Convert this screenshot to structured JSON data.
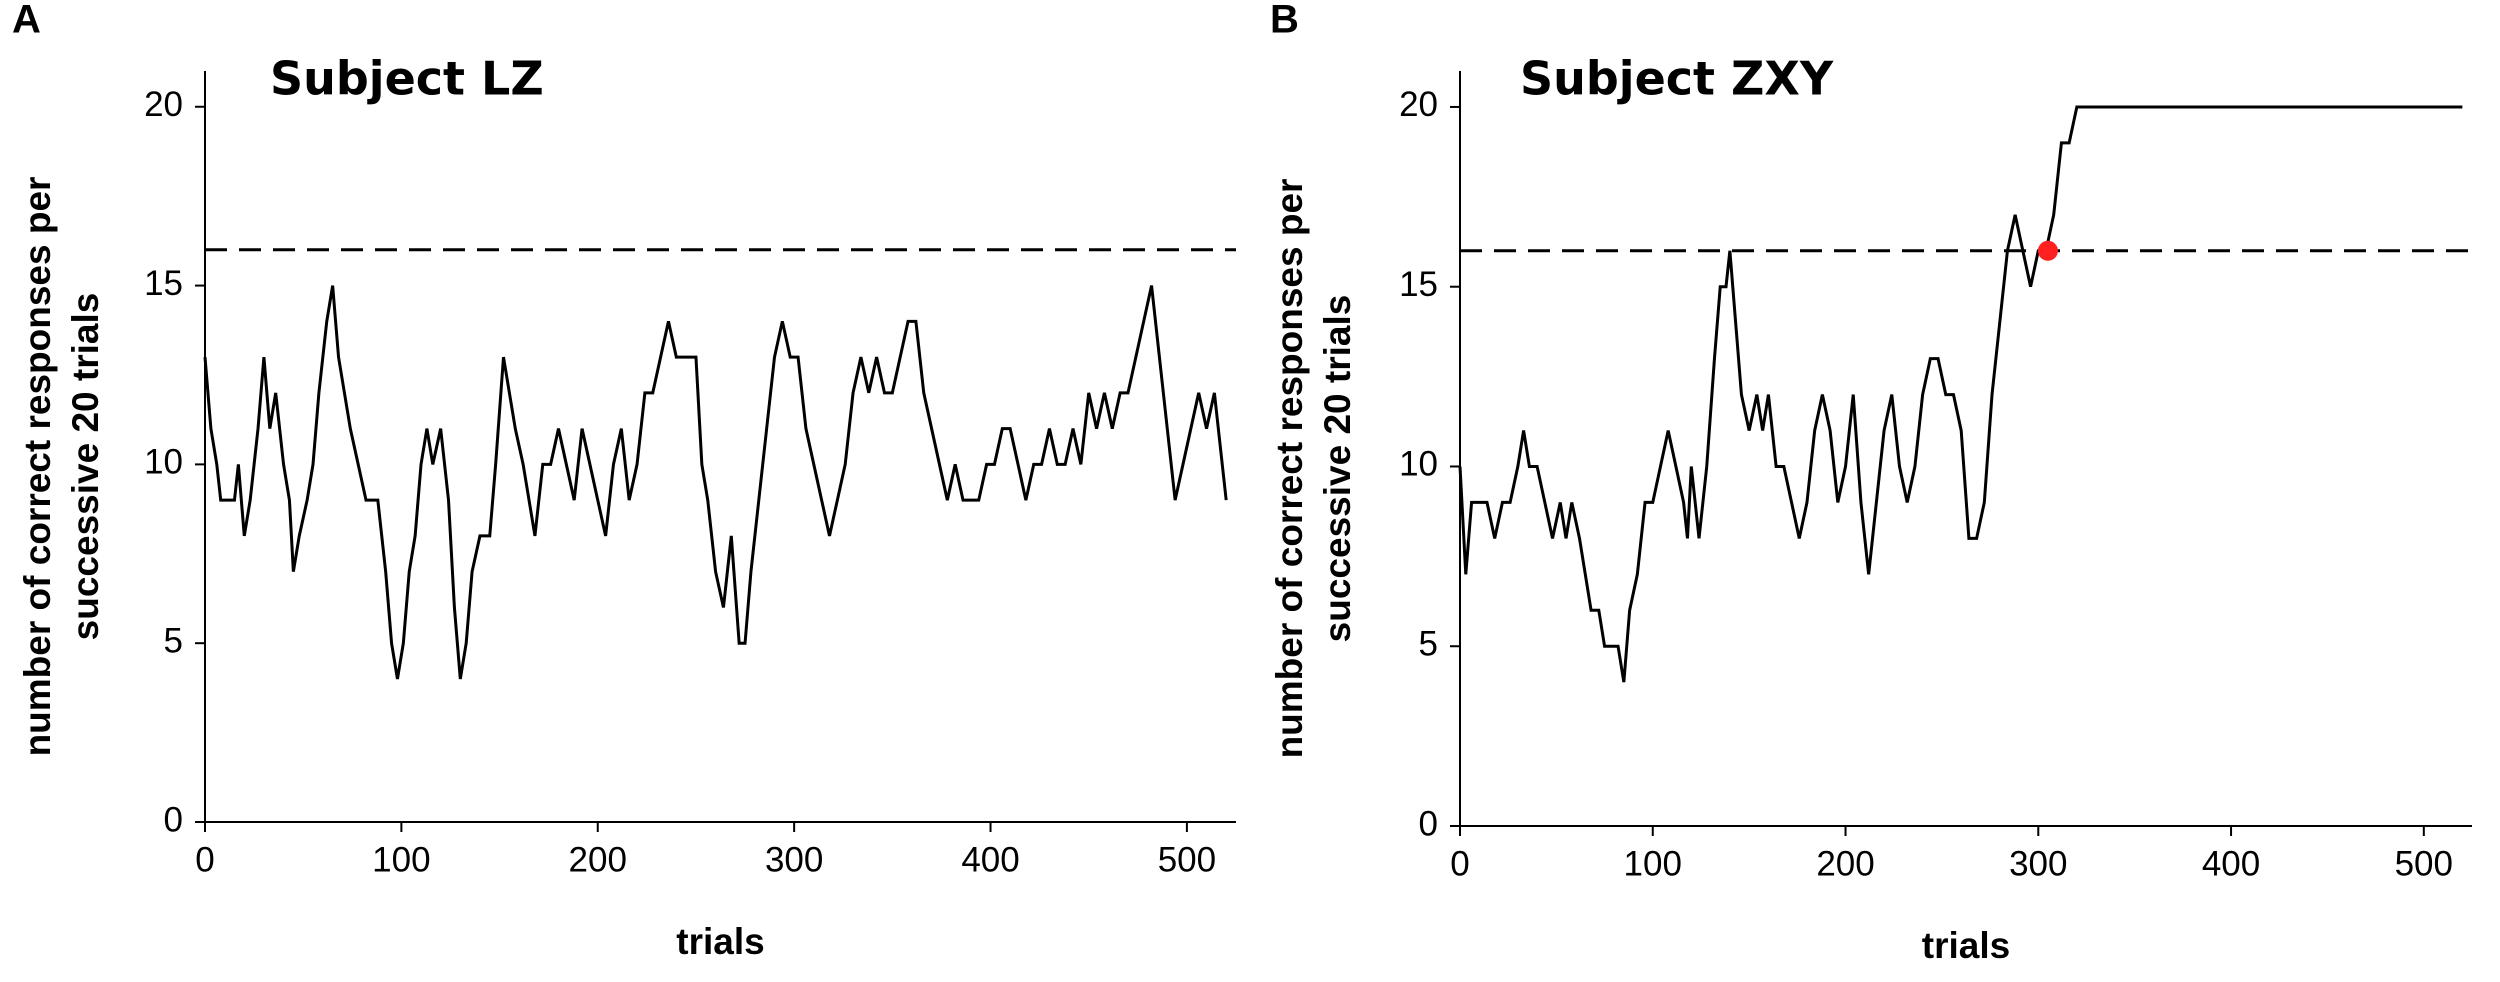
{
  "chart_data": [
    {
      "type": "line",
      "panel_label": "A",
      "title": "Subject LZ",
      "xlabel": "trials",
      "ylabel": [
        "number of correct responses per",
        "successive 20 trials"
      ],
      "color": "#000000",
      "x": [
        0,
        3,
        6,
        8,
        15,
        17,
        20,
        23,
        27,
        30,
        33,
        36,
        40,
        43,
        45,
        48,
        52,
        55,
        58,
        62,
        65,
        68,
        71,
        74,
        78,
        82,
        88,
        90,
        92,
        95,
        98,
        101,
        104,
        107,
        110,
        113,
        116,
        120,
        124,
        127,
        130,
        133,
        136,
        140,
        145,
        148,
        152,
        155,
        158,
        162,
        165,
        168,
        172,
        176,
        180,
        184,
        188,
        192,
        196,
        200,
        204,
        208,
        212,
        216,
        220,
        224,
        228,
        232,
        236,
        240,
        245,
        250,
        253,
        256,
        260,
        264,
        268,
        272,
        275,
        278,
        282,
        286,
        290,
        294,
        298,
        302,
        306,
        310,
        314,
        318,
        322,
        326,
        330,
        334,
        338,
        342,
        346,
        350,
        354,
        358,
        362,
        366,
        370,
        374,
        378,
        382,
        386,
        390,
        394,
        398,
        402,
        406,
        410,
        414,
        418,
        422,
        426,
        430,
        434,
        438,
        442,
        446,
        450,
        454,
        458,
        462,
        466,
        470,
        474,
        478,
        482,
        486,
        490,
        494,
        498,
        502,
        506,
        510,
        514,
        518,
        520
      ],
      "values": [
        13,
        11,
        10,
        9,
        9,
        10,
        8,
        9,
        11,
        13,
        11,
        12,
        10,
        9,
        7,
        8,
        9,
        10,
        12,
        14,
        15,
        13,
        12,
        11,
        10,
        9,
        9,
        8,
        7,
        5,
        4,
        5,
        7,
        8,
        10,
        11,
        10,
        11,
        9,
        6,
        4,
        5,
        7,
        8,
        8,
        10,
        13,
        12,
        11,
        10,
        9,
        8,
        10,
        10,
        11,
        10,
        9,
        11,
        10,
        9,
        8,
        10,
        11,
        9,
        10,
        12,
        12,
        13,
        14,
        13,
        13,
        13,
        10,
        9,
        7,
        6,
        8,
        5,
        5,
        7,
        9,
        11,
        13,
        14,
        13,
        13,
        11,
        10,
        9,
        8,
        9,
        10,
        12,
        13,
        12,
        13,
        12,
        12,
        13,
        14,
        14,
        12,
        11,
        10,
        9,
        10,
        9,
        9,
        9,
        10,
        10,
        11,
        11,
        10,
        9,
        10,
        10,
        11,
        10,
        10,
        11,
        10,
        12,
        11,
        12,
        11,
        12,
        12,
        13,
        14,
        15,
        13,
        11,
        9,
        10,
        11,
        12,
        11,
        12,
        10,
        9
      ],
      "reference_line": 16,
      "xlim": [
        0,
        525
      ],
      "ylim": [
        0,
        21
      ],
      "xticks": [
        0,
        100,
        200,
        300,
        400,
        500
      ],
      "yticks": [
        0,
        5,
        10,
        15,
        20
      ]
    },
    {
      "type": "line",
      "panel_label": "B",
      "title": "Subject ZXY",
      "xlabel": "trials",
      "ylabel": [
        "number of correct responses per",
        "successive 20 trials"
      ],
      "color": "#000000",
      "x": [
        0,
        3,
        6,
        10,
        14,
        18,
        22,
        26,
        30,
        33,
        36,
        40,
        44,
        48,
        52,
        55,
        58,
        62,
        65,
        68,
        72,
        75,
        78,
        82,
        85,
        88,
        92,
        96,
        100,
        104,
        108,
        112,
        116,
        118,
        120,
        124,
        128,
        132,
        135,
        138,
        140,
        143,
        146,
        150,
        154,
        157,
        160,
        164,
        168,
        172,
        176,
        180,
        184,
        188,
        192,
        196,
        200,
        204,
        208,
        212,
        216,
        220,
        224,
        228,
        232,
        236,
        240,
        244,
        248,
        252,
        256,
        260,
        264,
        268,
        272,
        276,
        280,
        284,
        288,
        292,
        296,
        300,
        304,
        308,
        312,
        316,
        320,
        520
      ],
      "values": [
        10,
        7,
        9,
        9,
        9,
        8,
        9,
        9,
        10,
        11,
        10,
        10,
        9,
        8,
        9,
        8,
        9,
        8,
        7,
        6,
        6,
        5,
        5,
        5,
        4,
        6,
        7,
        9,
        9,
        10,
        11,
        10,
        9,
        8,
        10,
        8,
        10,
        13,
        15,
        15,
        16,
        14,
        12,
        11,
        12,
        11,
        12,
        10,
        10,
        9,
        8,
        9,
        11,
        12,
        11,
        9,
        10,
        12,
        9,
        7,
        9,
        11,
        12,
        10,
        9,
        10,
        12,
        13,
        13,
        12,
        12,
        11,
        8,
        8,
        9,
        12,
        14,
        16,
        17,
        16,
        15,
        16,
        16,
        17,
        19,
        19,
        20,
        20
      ],
      "reference_line": 16,
      "highlight": {
        "x": 305,
        "y": 16,
        "color": "#ff2020"
      },
      "xlim": [
        0,
        525
      ],
      "ylim": [
        0,
        21
      ],
      "xticks": [
        0,
        100,
        200,
        300,
        400,
        500
      ],
      "yticks": [
        0,
        5,
        10,
        15,
        20
      ]
    }
  ]
}
